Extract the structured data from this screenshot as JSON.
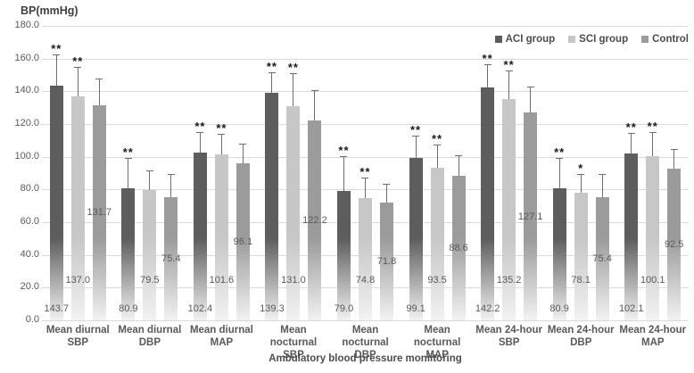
{
  "figure": {
    "y_axis_title": "BP(mmHg)",
    "x_axis_title": "Ambulatory blood pressure moniitoring"
  },
  "chart_data": {
    "type": "bar",
    "title": "",
    "ylabel": "BP(mmHg)",
    "xlabel": "Ambulatory blood pressure moniitoring",
    "ylim": [
      0,
      180
    ],
    "ytick_step": 20,
    "grid": true,
    "legend_position": "top-right",
    "error_bars": "upper",
    "categories": [
      "Mean diurnal SBP",
      "Mean diurnal DBP",
      "Mean diurnal MAP",
      "Mean nocturnal SBP",
      "Mean nocturnal DBP",
      "Mean nocturnal MAP",
      "Mean 24-hour SBP",
      "Mean 24-hour DBP",
      "Mean 24-hour MAP"
    ],
    "category_lines": [
      [
        "Mean diurnal",
        "SBP"
      ],
      [
        "Mean diurnal",
        "DBP"
      ],
      [
        "Mean diurnal",
        "MAP"
      ],
      [
        "Mean nocturnal",
        "SBP"
      ],
      [
        "Mean nocturnal",
        "DBP"
      ],
      [
        "Mean nocturnal",
        "MAP"
      ],
      [
        "Mean 24-hour",
        "SBP"
      ],
      [
        "Mean 24-hour",
        "DBP"
      ],
      [
        "Mean 24-hour",
        "MAP"
      ]
    ],
    "series": [
      {
        "name": "ACI group",
        "color": "#5d5d5d",
        "values": [
          143.7,
          80.9,
          102.4,
          139.3,
          79.0,
          99.1,
          142.2,
          80.9,
          102.1
        ],
        "errors": [
          18.3,
          17.8,
          12.2,
          12.0,
          21.0,
          13.3,
          13.6,
          18.0,
          12.0
        ],
        "sig": [
          "**",
          "**",
          "**",
          "**",
          "**",
          "**",
          "**",
          "**",
          "**"
        ]
      },
      {
        "name": "SCI group",
        "color": "#c7c7c7",
        "values": [
          137.0,
          79.5,
          101.6,
          131.0,
          74.8,
          93.5,
          135.2,
          78.1,
          100.1
        ],
        "errors": [
          17.4,
          11.6,
          11.9,
          19.4,
          11.9,
          13.4,
          17.0,
          10.9,
          14.3
        ],
        "sig": [
          "**",
          "",
          "**",
          "**",
          "**",
          "**",
          "**",
          "*",
          "**"
        ]
      },
      {
        "name": "Control",
        "color": "#9b9b9b",
        "values": [
          131.7,
          75.4,
          96.1,
          122.2,
          71.8,
          88.6,
          127.1,
          75.4,
          92.5
        ],
        "errors": [
          15.6,
          13.5,
          11.4,
          18.2,
          11.2,
          11.8,
          15.4,
          13.5,
          11.5
        ],
        "sig": [
          "",
          "",
          "",
          "",
          "",
          "",
          "",
          "",
          ""
        ]
      }
    ]
  }
}
